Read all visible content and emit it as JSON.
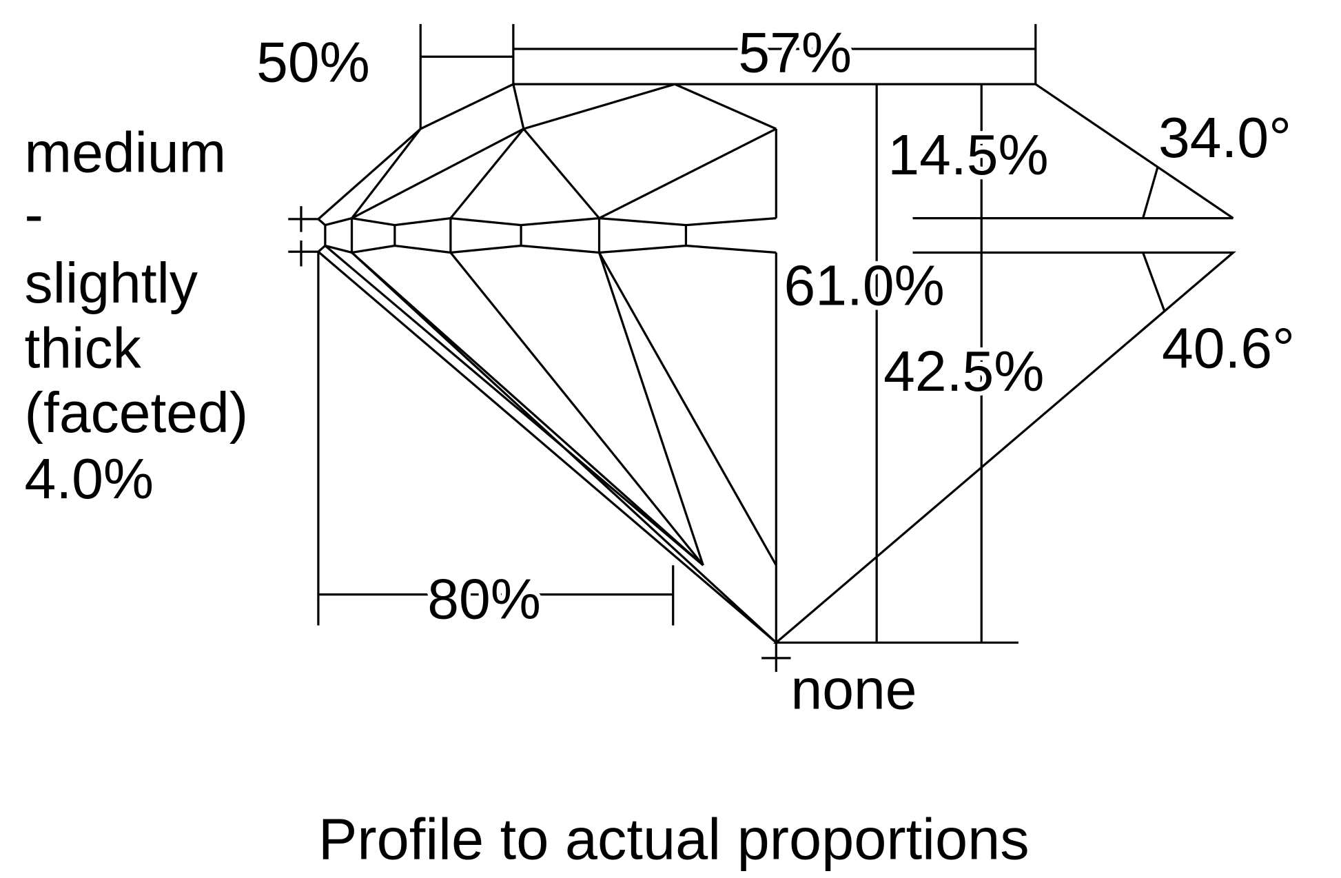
{
  "labels": {
    "lower_half_length": "50%",
    "table": "57%",
    "girdle_thickness": [
      "medium",
      "-",
      "slightly",
      "thick",
      "(faceted)",
      "4.0%"
    ],
    "crown_height": "14.5%",
    "crown_angle": "34.0°",
    "total_depth": "61.0%",
    "pavilion_angle": "40.6°",
    "pavilion_depth": "42.5%",
    "star_length": "80%",
    "culet": "none"
  },
  "caption": "Profile to actual proportions",
  "colors": {
    "line": "#000000",
    "background": "#ffffff"
  }
}
